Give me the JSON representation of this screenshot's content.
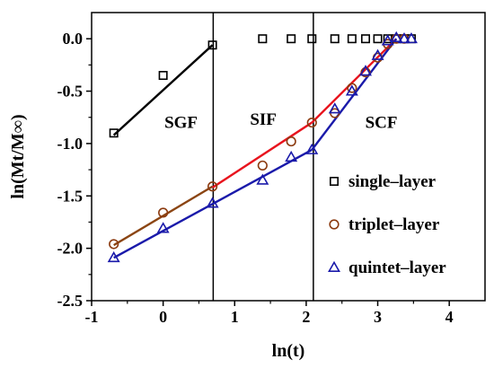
{
  "chart_data": {
    "type": "scatter",
    "title": "",
    "xlabel": "ln(t)",
    "ylabel": "ln(Mt/M∞)",
    "xlim": [
      -1,
      4.5
    ],
    "ylim": [
      -2.5,
      0.25
    ],
    "xticks": [
      -1,
      0,
      1,
      2,
      3,
      4
    ],
    "xtick_labels": [
      "-1",
      "0",
      "1",
      "2",
      "3",
      "4"
    ],
    "yticks": [
      -2.5,
      -2.0,
      -1.5,
      -1.0,
      -0.5,
      0.0
    ],
    "ytick_labels": [
      "-2.5",
      "-2.0",
      "-1.5",
      "-1.0",
      "-0.5",
      "0.0"
    ],
    "grid": false,
    "legend_position": "right",
    "region_dividers": [
      0.7,
      2.1
    ],
    "regions": [
      {
        "label": "SGF",
        "x": 0.25,
        "y": -0.85
      },
      {
        "label": "SIF",
        "x": 1.4,
        "y": -0.82
      },
      {
        "label": "SCF",
        "x": 3.05,
        "y": -0.85
      }
    ],
    "series": [
      {
        "name": "single–layer",
        "marker": "square",
        "color": "#000000",
        "x": [
          -0.69,
          0.0,
          0.69,
          1.39,
          1.79,
          2.08,
          2.4,
          2.64,
          2.83,
          3.0,
          3.14,
          3.26,
          3.37,
          3.47
        ],
        "y": [
          -0.9,
          -0.35,
          -0.06,
          0.0,
          0.0,
          0.0,
          0.0,
          0.0,
          0.0,
          0.0,
          0.0,
          0.0,
          0.0,
          0.0
        ]
      },
      {
        "name": "triplet–layer",
        "marker": "circle",
        "color": "#8b3a0f",
        "x": [
          -0.69,
          0.0,
          0.69,
          1.39,
          1.79,
          2.08,
          2.4,
          2.64,
          2.83,
          3.0,
          3.14,
          3.26,
          3.37
        ],
        "y": [
          -1.96,
          -1.66,
          -1.41,
          -1.21,
          -0.98,
          -0.8,
          -0.71,
          -0.47,
          -0.32,
          -0.18,
          -0.05,
          0.0,
          0.0
        ]
      },
      {
        "name": "quintet–layer",
        "marker": "triangle",
        "color": "#1a1aaa",
        "x": [
          -0.69,
          0.0,
          0.69,
          1.39,
          1.79,
          2.08,
          2.4,
          2.64,
          2.83,
          3.0,
          3.14,
          3.26,
          3.37,
          3.47
        ],
        "y": [
          -2.09,
          -1.81,
          -1.57,
          -1.35,
          -1.13,
          -1.06,
          -0.67,
          -0.5,
          -0.31,
          -0.16,
          -0.02,
          0.01,
          0.0,
          0.0
        ]
      }
    ],
    "fit_lines": [
      {
        "color": "#000000",
        "x": [
          -0.69,
          0.69
        ],
        "y": [
          -0.92,
          -0.06
        ]
      },
      {
        "color": "#8b4513",
        "x": [
          -0.69,
          0.69
        ],
        "y": [
          -1.97,
          -1.41
        ]
      },
      {
        "color": "#e8141e",
        "x": [
          0.69,
          2.08
        ],
        "y": [
          -1.42,
          -0.8
        ]
      },
      {
        "color": "#e8141e",
        "x": [
          2.08,
          3.26
        ],
        "y": [
          -0.8,
          0.0
        ]
      },
      {
        "color": "#1a1aaa",
        "x": [
          -0.69,
          2.08
        ],
        "y": [
          -2.09,
          -1.06
        ]
      },
      {
        "color": "#1a1aaa",
        "x": [
          2.08,
          3.26
        ],
        "y": [
          -1.06,
          0.0
        ]
      }
    ]
  }
}
